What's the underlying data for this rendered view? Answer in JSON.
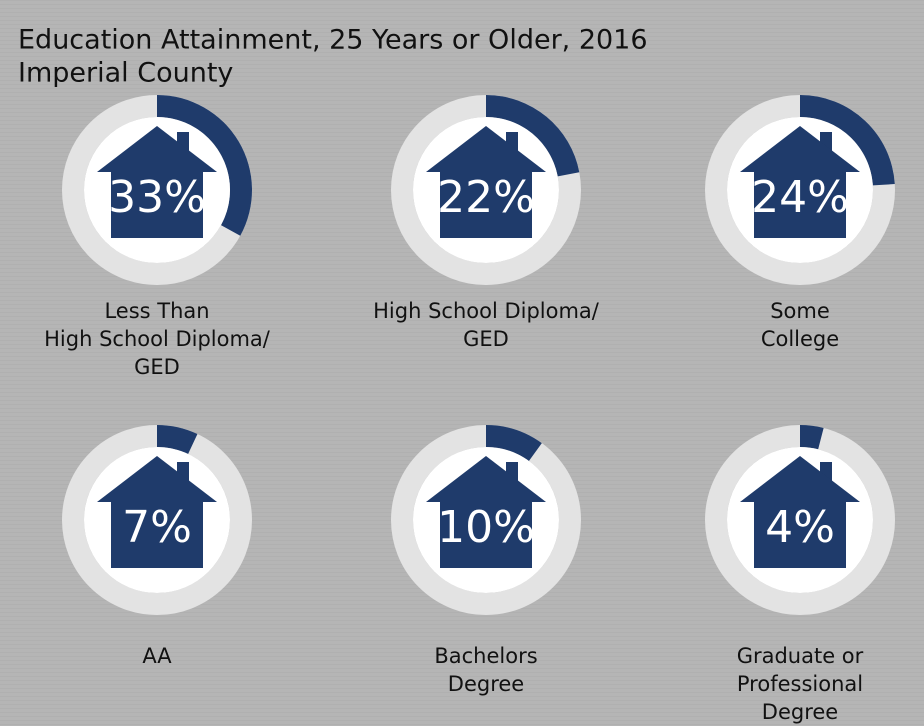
{
  "chart_data": {
    "type": "donut",
    "title": "Education Attainment, 25 Years or Older, 2016",
    "subtitle": "Imperial County",
    "categories": [
      [
        "Less Than",
        "High School Diploma/",
        "GED"
      ],
      [
        "High School Diploma/",
        "GED"
      ],
      [
        "Some",
        "College"
      ],
      [
        "AA"
      ],
      [
        "Bachelors",
        "Degree"
      ],
      [
        "Graduate or",
        "Professional",
        "Degree"
      ]
    ],
    "values": [
      33,
      22,
      24,
      7,
      10,
      4
    ],
    "value_labels": [
      "33%",
      "22%",
      "24%",
      "7%",
      "10%",
      "4%"
    ],
    "color": "#1f3b6b",
    "ring_color": "#e3e3e3"
  }
}
